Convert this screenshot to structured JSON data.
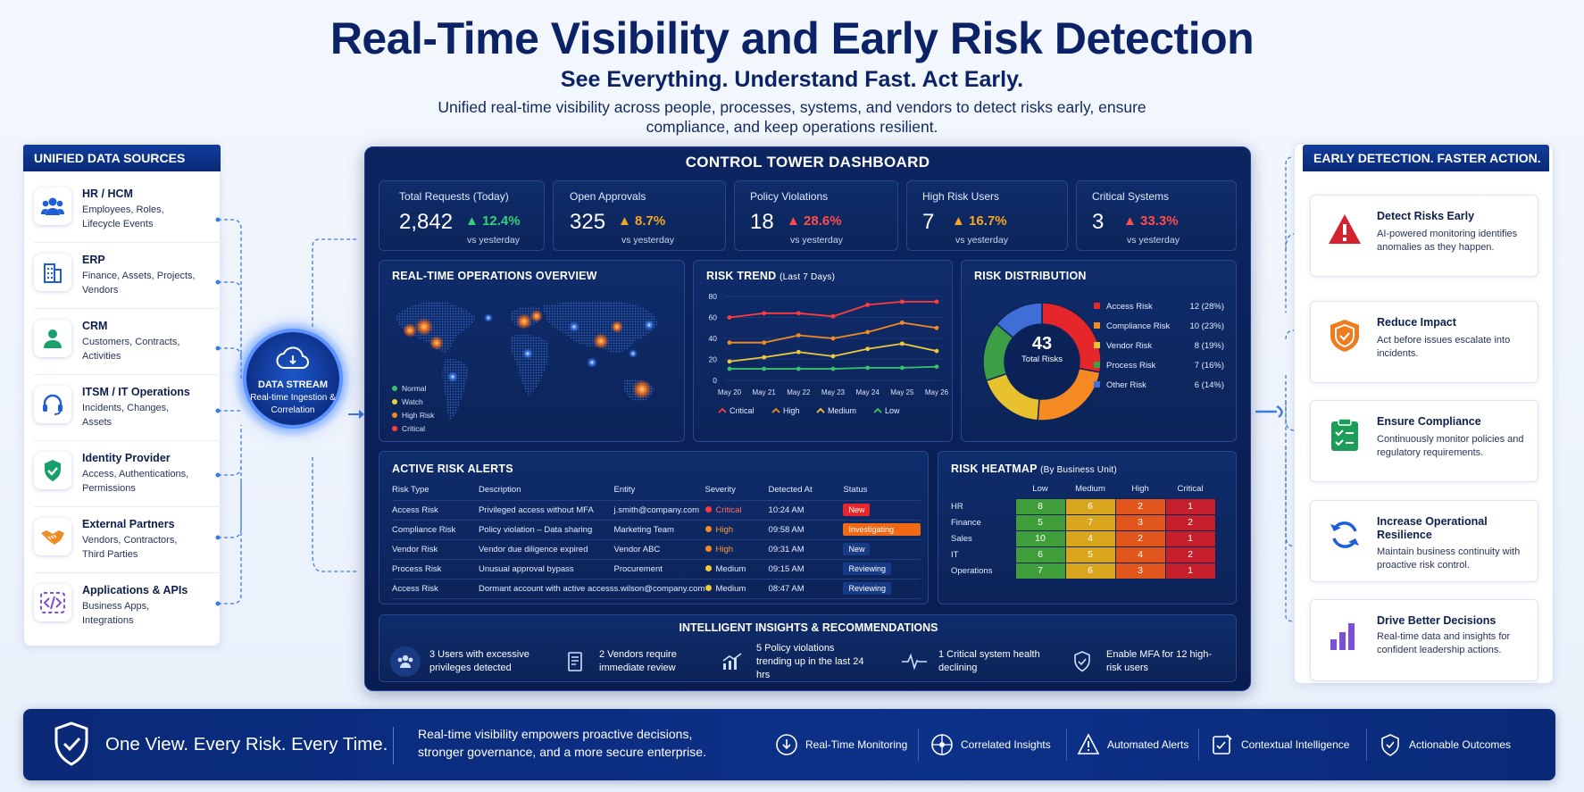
{
  "header": {
    "title": "Real-Time Visibility and Early Risk Detection",
    "subtitle": "See Everything. Understand Fast. Act Early.",
    "description": "Unified real-time visibility across people, processes, systems, and vendors to detect risks early, ensure compliance, and keep operations resilient."
  },
  "sources": {
    "title": "UNIFIED DATA SOURCES",
    "items": [
      {
        "title": "HR / HCM",
        "sub": "Employees, Roles, Lifecycle Events",
        "icon": "people-icon"
      },
      {
        "title": "ERP",
        "sub": "Finance, Assets, Projects, Vendors",
        "icon": "building-icon"
      },
      {
        "title": "CRM",
        "sub": "Customers, Contracts, Activities",
        "icon": "person-icon"
      },
      {
        "title": "ITSM / IT Operations",
        "sub": "Incidents, Changes, Assets",
        "icon": "headset-icon"
      },
      {
        "title": "Identity Provider",
        "sub": "Access, Authentications, Permissions",
        "icon": "shield-check-icon"
      },
      {
        "title": "External Partners",
        "sub": "Vendors, Contractors, Third Parties",
        "icon": "handshake-icon"
      },
      {
        "title": "Applications & APIs",
        "sub": "Business Apps, Integrations",
        "icon": "code-icon"
      }
    ]
  },
  "stream": {
    "title": "DATA STREAM",
    "sub": "Real-time Ingestion & Correlation"
  },
  "dashboard": {
    "title": "CONTROL TOWER DASHBOARD",
    "kpis": [
      {
        "label": "Total Requests (Today)",
        "value": "2,842",
        "change": "12.4%",
        "sub": "vs yesterday",
        "color": "#36d17a"
      },
      {
        "label": "Open Approvals",
        "value": "325",
        "change": "8.7%",
        "sub": "vs yesterday",
        "color": "#f5a623"
      },
      {
        "label": "Policy Violations",
        "value": "18",
        "change": "28.6%",
        "sub": "vs yesterday",
        "color": "#ff4d4d"
      },
      {
        "label": "High Risk Users",
        "value": "7",
        "change": "16.7%",
        "sub": "vs yesterday",
        "color": "#f5a623"
      },
      {
        "label": "Critical Systems",
        "value": "3",
        "change": "33.3%",
        "sub": "vs yesterday",
        "color": "#ff4d4d"
      }
    ],
    "map": {
      "title": "REAL-TIME OPERATIONS OVERVIEW",
      "legend": [
        {
          "label": "Normal",
          "color": "#35c46a"
        },
        {
          "label": "Watch",
          "color": "#f0d43a"
        },
        {
          "label": "High Risk",
          "color": "#f58a23"
        },
        {
          "label": "Critical",
          "color": "#ff3b3b"
        }
      ]
    },
    "trend": {
      "title": "RISK TREND",
      "title_note": "(Last 7 Days)"
    },
    "distribution": {
      "title": "RISK DISTRIBUTION",
      "total": "43",
      "total_label": "Total Risks"
    },
    "alerts": {
      "title": "ACTIVE RISK ALERTS",
      "columns": [
        "Risk Type",
        "Description",
        "Entity",
        "Severity",
        "Detected At",
        "Status"
      ],
      "rows": [
        {
          "type": "Access Risk",
          "desc": "Privileged access without MFA",
          "entity": "j.smith@company.com",
          "severity": "Critical",
          "sev_color": "#ff3b3b",
          "time": "10:24 AM",
          "status": "New",
          "status_bg": "#e5262a"
        },
        {
          "type": "Compliance Risk",
          "desc": "Policy violation – Data sharing",
          "entity": "Marketing Team",
          "severity": "High",
          "sev_color": "#f58a23",
          "time": "09:58 AM",
          "status": "Investigating",
          "status_bg": "#f06a15"
        },
        {
          "type": "Vendor Risk",
          "desc": "Vendor due diligence expired",
          "entity": "Vendor ABC",
          "severity": "High",
          "sev_color": "#f58a23",
          "time": "09:31 AM",
          "status": "New",
          "status_bg": "#173a85"
        },
        {
          "type": "Process Risk",
          "desc": "Unusual approval bypass",
          "entity": "Procurement",
          "severity": "Medium",
          "sev_color": "#f0c93a",
          "time": "09:15 AM",
          "status": "Reviewing",
          "status_bg": "#173a85"
        },
        {
          "type": "Access Risk",
          "desc": "Dormant account with active access",
          "entity": "s.wilson@company.com",
          "severity": "Medium",
          "sev_color": "#f0c93a",
          "time": "08:47 AM",
          "status": "Reviewing",
          "status_bg": "#173a85"
        }
      ]
    },
    "heatmap": {
      "title": "RISK HEATMAP",
      "title_note": "(By Business Unit)",
      "columns": [
        "Low",
        "Medium",
        "High",
        "Critical"
      ],
      "colors": [
        "#3f9e3a",
        "#d9a51c",
        "#e0561c",
        "#c41f2a"
      ],
      "rows": [
        {
          "label": "HR",
          "values": [
            "8",
            "6",
            "2",
            "1"
          ]
        },
        {
          "label": "Finance",
          "values": [
            "5",
            "7",
            "3",
            "2"
          ]
        },
        {
          "label": "Sales",
          "values": [
            "10",
            "4",
            "2",
            "1"
          ]
        },
        {
          "label": "IT",
          "values": [
            "6",
            "5",
            "4",
            "2"
          ]
        },
        {
          "label": "Operations",
          "values": [
            "7",
            "6",
            "3",
            "1"
          ]
        }
      ]
    },
    "insights": {
      "title": "INTELLIGENT INSIGHTS & RECOMMENDATIONS",
      "items": [
        {
          "text": "3 Users with excessive privileges detected",
          "icon": "users-icon"
        },
        {
          "text": "2 Vendors require immediate review",
          "icon": "document-icon"
        },
        {
          "text": "5 Policy violations trending up in the last 24 hrs",
          "icon": "trend-up-icon"
        },
        {
          "text": "1 Critical system health declining",
          "icon": "pulse-icon"
        },
        {
          "text": "Enable MFA for 12 high-risk users",
          "icon": "shield-icon"
        }
      ]
    }
  },
  "right_panel": {
    "title": "EARLY DETECTION. FASTER ACTION.",
    "items": [
      {
        "title": "Detect Risks Early",
        "sub": "AI-powered monitoring identifies anomalies as they happen.",
        "icon": "warning-icon"
      },
      {
        "title": "Reduce Impact",
        "sub": "Act before issues escalate into incidents.",
        "icon": "shield-icon"
      },
      {
        "title": "Ensure Compliance",
        "sub": "Continuously monitor policies and regulatory requirements.",
        "icon": "clipboard-check-icon"
      },
      {
        "title": "Increase Operational Resilience",
        "sub": "Maintain business continuity with proactive risk control.",
        "icon": "refresh-icon"
      },
      {
        "title": "Drive Better Decisions",
        "sub": "Real-time data and insights for confident leadership actions.",
        "icon": "bar-chart-icon"
      }
    ]
  },
  "footer": {
    "tagline": "One View. Every Risk. Every Time.",
    "description": "Real-time visibility empowers proactive decisions, stronger governance, and a more secure enterprise.",
    "features": [
      {
        "label": "Real-Time Monitoring",
        "icon": "download-circle-icon"
      },
      {
        "label": "Correlated Insights",
        "icon": "network-icon"
      },
      {
        "label": "Automated Alerts",
        "icon": "alert-icon"
      },
      {
        "label": "Contextual Intelligence",
        "icon": "checklist-icon"
      },
      {
        "label": "Actionable Outcomes",
        "icon": "shield-check-icon"
      }
    ]
  },
  "chart_data": [
    {
      "type": "line",
      "title": "RISK TREND (Last 7 Days)",
      "x": [
        "May 20",
        "May 21",
        "May 22",
        "May 23",
        "May 24",
        "May 25",
        "May 26"
      ],
      "ylim": [
        0,
        80
      ],
      "yticks": [
        0,
        20,
        40,
        60,
        80
      ],
      "series": [
        {
          "name": "Critical",
          "color": "#ff3b3b",
          "values": [
            60,
            64,
            64,
            61,
            72,
            75,
            75
          ]
        },
        {
          "name": "High",
          "color": "#f58a23",
          "values": [
            36,
            36,
            43,
            40,
            46,
            55,
            50
          ]
        },
        {
          "name": "Medium",
          "color": "#f0c93a",
          "values": [
            18,
            22,
            27,
            23,
            30,
            35,
            28
          ]
        },
        {
          "name": "Low",
          "color": "#35c46a",
          "values": [
            11,
            11,
            11,
            11,
            12,
            12,
            13
          ]
        }
      ],
      "legend": "bottom"
    },
    {
      "type": "pie",
      "title": "RISK DISTRIBUTION",
      "slices": [
        {
          "name": "Access Risk",
          "value": 12,
          "label": "12 (28%)",
          "color": "#e5262a"
        },
        {
          "name": "Compliance Risk",
          "value": 10,
          "label": "10 (23%)",
          "color": "#f58a23"
        },
        {
          "name": "Vendor Risk",
          "value": 8,
          "label": "8 (19%)",
          "color": "#e8c22e"
        },
        {
          "name": "Process Risk",
          "value": 7,
          "label": "7 (16%)",
          "color": "#3c9e46"
        },
        {
          "name": "Other Risk",
          "value": 6,
          "label": "6 (14%)",
          "color": "#3f6fd6"
        }
      ],
      "legend": "right"
    }
  ]
}
